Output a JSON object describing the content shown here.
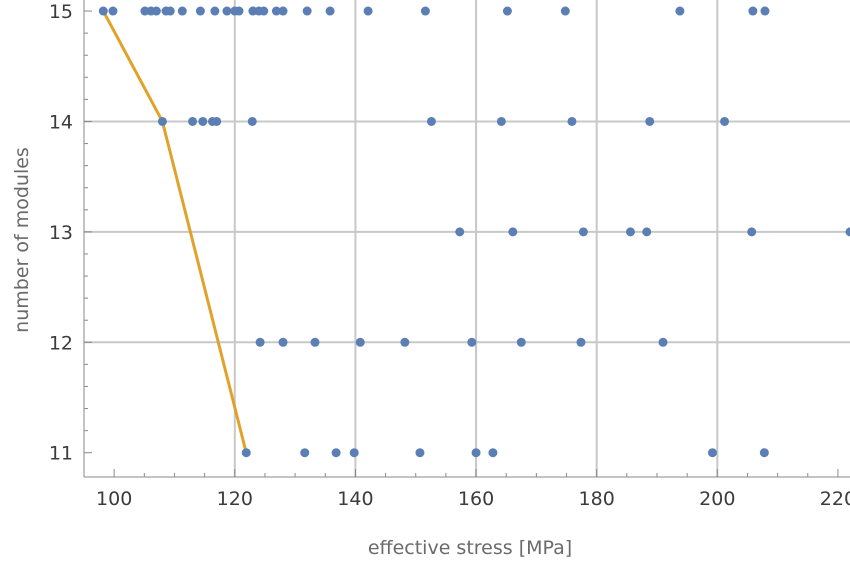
{
  "chart_data": {
    "type": "scatter",
    "title": "",
    "xlabel": "effective stress [MPa]",
    "ylabel": "number of modules",
    "xlim": [
      95,
      222
    ],
    "ylim": [
      10.78,
      15.1
    ],
    "x_ticks": [
      100,
      120,
      140,
      160,
      180,
      200,
      220
    ],
    "x_tick_labels": [
      "100",
      "120",
      "140",
      "160",
      "180",
      "200",
      "220"
    ],
    "y_ticks": [
      11,
      12,
      13,
      14,
      15
    ],
    "y_tick_labels": [
      "11",
      "12",
      "13",
      "14",
      "15"
    ],
    "x_gridlines": [
      120,
      140,
      160,
      180,
      200
    ],
    "y_gridlines": [
      12,
      13,
      14
    ],
    "grid": true,
    "colors": {
      "points": "#5b7fb5",
      "line": "#e0a22b",
      "grid": "#c8c8c8",
      "frame": "#8a8a8a"
    },
    "series": [
      {
        "type": "scatter",
        "points": [
          [
            98.2,
            15
          ],
          [
            99.8,
            15
          ],
          [
            105.1,
            15
          ],
          [
            106.1,
            15
          ],
          [
            107.0,
            15
          ],
          [
            108.6,
            15
          ],
          [
            109.3,
            15
          ],
          [
            111.3,
            15
          ],
          [
            114.3,
            15
          ],
          [
            116.7,
            15
          ],
          [
            118.7,
            15
          ],
          [
            120.0,
            15
          ],
          [
            120.7,
            15
          ],
          [
            123.0,
            15
          ],
          [
            124.0,
            15
          ],
          [
            124.8,
            15
          ],
          [
            126.9,
            15
          ],
          [
            128.0,
            15
          ],
          [
            132.0,
            15
          ],
          [
            135.8,
            15
          ],
          [
            142.1,
            15
          ],
          [
            151.6,
            15
          ],
          [
            165.2,
            15
          ],
          [
            174.8,
            15
          ],
          [
            193.8,
            15
          ],
          [
            205.9,
            15
          ],
          [
            207.9,
            15
          ],
          [
            108.0,
            14
          ],
          [
            113.0,
            14
          ],
          [
            114.7,
            14
          ],
          [
            116.3,
            14
          ],
          [
            117.0,
            14
          ],
          [
            122.9,
            14
          ],
          [
            152.6,
            14
          ],
          [
            164.2,
            14
          ],
          [
            175.9,
            14
          ],
          [
            188.8,
            14
          ],
          [
            201.2,
            14
          ],
          [
            157.3,
            13
          ],
          [
            166.1,
            13
          ],
          [
            177.8,
            13
          ],
          [
            185.6,
            13
          ],
          [
            188.3,
            13
          ],
          [
            205.7,
            13
          ],
          [
            222.0,
            13
          ],
          [
            124.2,
            12
          ],
          [
            128.0,
            12
          ],
          [
            133.3,
            12
          ],
          [
            140.8,
            12
          ],
          [
            148.2,
            12
          ],
          [
            159.3,
            12
          ],
          [
            167.5,
            12
          ],
          [
            177.4,
            12
          ],
          [
            191.0,
            12
          ],
          [
            121.9,
            11
          ],
          [
            131.6,
            11
          ],
          [
            136.8,
            11
          ],
          [
            139.8,
            11
          ],
          [
            150.7,
            11
          ],
          [
            160.0,
            11
          ],
          [
            162.8,
            11
          ],
          [
            199.2,
            11
          ],
          [
            207.8,
            11
          ]
        ]
      },
      {
        "type": "line",
        "points": [
          [
            98.2,
            15
          ],
          [
            108.0,
            14
          ],
          [
            121.9,
            11
          ]
        ]
      }
    ]
  }
}
